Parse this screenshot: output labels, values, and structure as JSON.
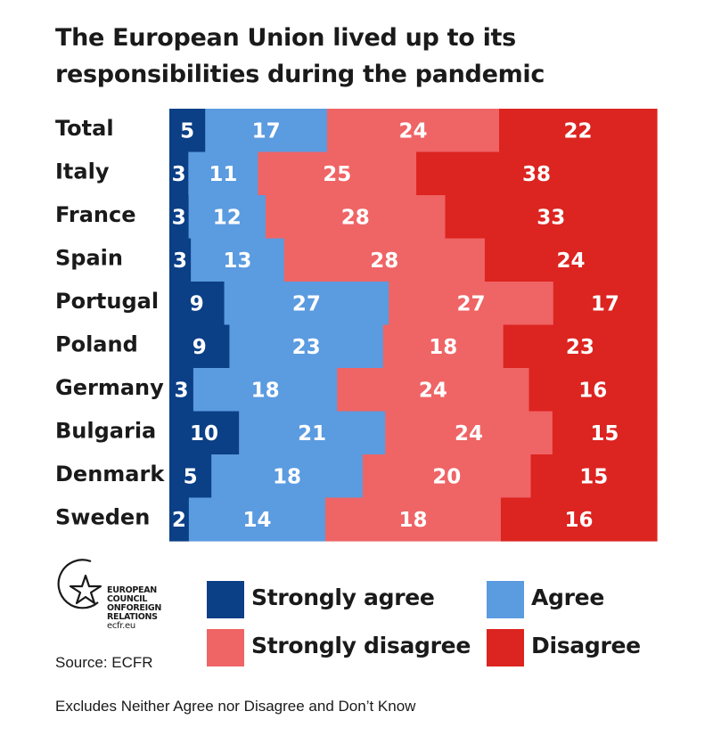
{
  "title": "The European Union lived up to its responsibilities during the pandemic",
  "chart_data": {
    "type": "bar",
    "stacked": true,
    "orientation": "horizontal",
    "categories": [
      "Total",
      "Italy",
      "France",
      "Spain",
      "Portugal",
      "Poland",
      "Germany",
      "Bulgaria",
      "Denmark",
      "Sweden"
    ],
    "series": [
      {
        "name": "Strongly agree",
        "color": "#0b3f86",
        "values": [
          5,
          3,
          3,
          3,
          9,
          9,
          3,
          10,
          5,
          2
        ]
      },
      {
        "name": "Agree",
        "color": "#5b9be0",
        "values": [
          17,
          11,
          12,
          13,
          27,
          23,
          18,
          21,
          18,
          14
        ]
      },
      {
        "name": "Strongly disagree",
        "color": "#ef6465",
        "values": [
          24,
          25,
          28,
          28,
          27,
          18,
          24,
          24,
          20,
          18
        ]
      },
      {
        "name": "Disagree",
        "color": "#dc2420",
        "values": [
          22,
          38,
          33,
          24,
          17,
          23,
          16,
          15,
          15,
          16
        ]
      }
    ],
    "legend_position": "bottom",
    "grid": false
  },
  "legend": {
    "items": [
      {
        "label": "Strongly agree",
        "color": "#0b3f86"
      },
      {
        "label": "Agree",
        "color": "#5b9be0"
      },
      {
        "label": "Strongly disagree",
        "color": "#ef6465"
      },
      {
        "label": "Disagree",
        "color": "#dc2420"
      }
    ]
  },
  "logo": {
    "line1": "EUROPEAN",
    "line2": "COUNCIL",
    "line3": "ONFOREIGN",
    "line4": "RELATIONS",
    "url": "ecfr.eu"
  },
  "source": "Source: ECFR",
  "note": "Excludes Neither Agree nor Disagree and Don’t Know"
}
